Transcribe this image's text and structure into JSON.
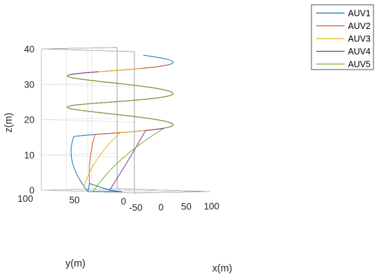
{
  "chart_data": {
    "type": "line3d",
    "title": "",
    "xlabel": "x(m)",
    "ylabel": "y(m)",
    "zlabel": "z(m)",
    "xlim": [
      -50,
      100
    ],
    "ylim": [
      0,
      100
    ],
    "zlim": [
      0,
      40
    ],
    "xticks": [
      "-50",
      "0",
      "50",
      "100"
    ],
    "yticks": [
      "0",
      "50",
      "100"
    ],
    "zticks": [
      "0",
      "10",
      "20",
      "30",
      "40"
    ],
    "grid": true,
    "legend_position": "top-right",
    "helix": {
      "center_x": 60,
      "center_y": 75,
      "radius": 50,
      "z_start": 15,
      "z_end": 38,
      "turns": 2.6
    },
    "series": [
      {
        "name": "AUV1",
        "color": "#0072BD",
        "start": [
          -50,
          50,
          0
        ],
        "join_z": 15.0
      },
      {
        "name": "AUV2",
        "color": "#D95319",
        "start": [
          -10,
          70,
          2
        ],
        "join_z": 15.8
      },
      {
        "name": "AUV3",
        "color": "#EDB120",
        "start": [
          -40,
          60,
          1
        ],
        "join_z": 16.5
      },
      {
        "name": "AUV4",
        "color": "#7E2F8E",
        "start": [
          30,
          70,
          0
        ],
        "join_z": 17.2
      },
      {
        "name": "AUV5",
        "color": "#77AC30",
        "start": [
          -30,
          55,
          0
        ],
        "join_z": 17.9
      }
    ],
    "formation": {
      "outline_series": "AUV1",
      "points": [
        [
          -50,
          50,
          0
        ],
        [
          -10,
          35,
          0
        ],
        [
          30,
          70,
          0
        ],
        [
          -10,
          70,
          2
        ],
        [
          -50,
          50,
          0
        ]
      ]
    }
  }
}
